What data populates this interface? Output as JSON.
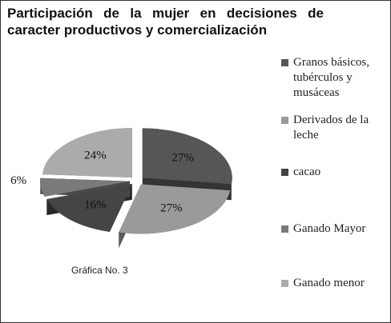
{
  "chart_data": {
    "type": "pie",
    "title": "Participación de la mujer en decisiones de caracter productivos y comercialización",
    "categories": [
      "Granos básicos, tubérculos y musáceas",
      "Derivados de la leche",
      "cacao",
      "Ganado Mayor",
      "Ganado menor"
    ],
    "values": [
      27,
      27,
      16,
      6,
      24
    ],
    "value_labels": [
      "27%",
      "27%",
      "16%",
      "6%",
      "24%"
    ],
    "colors": [
      "#565656",
      "#9a9a9a",
      "#454545",
      "#7a7a7a",
      "#ababab"
    ],
    "annotation": "Gráfica No. 3",
    "legend": "right"
  }
}
